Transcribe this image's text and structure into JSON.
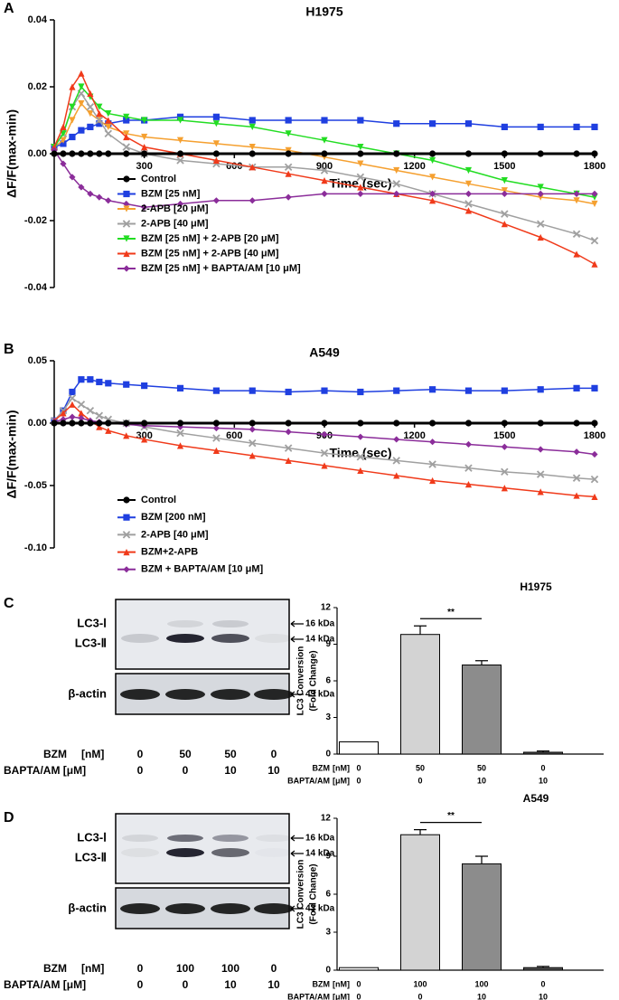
{
  "chart_data": [
    {
      "type": "line",
      "panel": "A",
      "title": "H1975",
      "xlabel": "Time (sec)",
      "ylabel": "ΔF/F(max-min)",
      "xlim": [
        0,
        1800
      ],
      "xticks": [
        300,
        600,
        900,
        1200,
        1500,
        1800
      ],
      "ylim": [
        -0.04,
        0.04
      ],
      "yticks": [
        -0.04,
        -0.02,
        {
          "value": 0,
          "label": "0.00"
        },
        0.02,
        0.04
      ],
      "legend": "lower left",
      "x": [
        0,
        30,
        60,
        90,
        120,
        150,
        180,
        240,
        300,
        420,
        540,
        660,
        780,
        900,
        1020,
        1140,
        1260,
        1380,
        1500,
        1620,
        1740,
        1800
      ],
      "series": [
        {
          "name": "Control",
          "color": "#000000",
          "marker": "circle",
          "values": [
            0,
            0,
            0,
            0,
            0,
            0,
            0,
            0,
            0,
            0,
            0,
            0,
            0,
            0,
            0,
            0,
            0,
            0,
            0,
            0,
            0,
            0
          ]
        },
        {
          "name": "BZM [25 nM]",
          "color": "#1f3fe0",
          "marker": "square",
          "values": [
            0.002,
            0.003,
            0.005,
            0.007,
            0.008,
            0.009,
            0.009,
            0.01,
            0.01,
            0.011,
            0.011,
            0.01,
            0.01,
            0.01,
            0.01,
            0.009,
            0.009,
            0.009,
            0.008,
            0.008,
            0.008,
            0.008
          ]
        },
        {
          "name": "2-APB [20 μM]",
          "color": "#f5a030",
          "marker": "triangle-down",
          "values": [
            0.002,
            0.004,
            0.01,
            0.015,
            0.012,
            0.01,
            0.008,
            0.006,
            0.005,
            0.004,
            0.003,
            0.002,
            0.001,
            -0.001,
            -0.003,
            -0.005,
            -0.007,
            -0.009,
            -0.011,
            -0.013,
            -0.014,
            -0.015
          ]
        },
        {
          "name": "2-APB [40 μM]",
          "color": "#a0a0a0",
          "marker": "x",
          "values": [
            0.002,
            0.006,
            0.014,
            0.018,
            0.014,
            0.01,
            0.006,
            0.002,
            0,
            -0.002,
            -0.003,
            -0.004,
            -0.004,
            -0.005,
            -0.007,
            -0.009,
            -0.012,
            -0.015,
            -0.018,
            -0.021,
            -0.024,
            -0.026
          ]
        },
        {
          "name": "BZM [25 nM] + 2-APB [20 μM]",
          "color": "#22dd22",
          "marker": "triangle-down",
          "values": [
            0.002,
            0.006,
            0.014,
            0.02,
            0.017,
            0.014,
            0.012,
            0.011,
            0.01,
            0.01,
            0.009,
            0.008,
            0.006,
            0.004,
            0.002,
            0,
            -0.002,
            -0.005,
            -0.008,
            -0.01,
            -0.012,
            -0.013
          ]
        },
        {
          "name": "BZM [25 nM] + 2-APB [40 μM]",
          "color": "#f03a1a",
          "marker": "triangle-up",
          "values": [
            0.002,
            0.008,
            0.02,
            0.024,
            0.018,
            0.012,
            0.01,
            0.005,
            0.002,
            0,
            -0.002,
            -0.004,
            -0.006,
            -0.008,
            -0.01,
            -0.012,
            -0.014,
            -0.017,
            -0.021,
            -0.025,
            -0.03,
            -0.033
          ]
        },
        {
          "name": "BZM [25 nM] + BAPTA/AM [10 μM]",
          "color": "#8b2d9a",
          "marker": "diamond",
          "values": [
            0.001,
            -0.003,
            -0.007,
            -0.01,
            -0.012,
            -0.013,
            -0.014,
            -0.015,
            -0.016,
            -0.015,
            -0.014,
            -0.014,
            -0.013,
            -0.012,
            -0.012,
            -0.012,
            -0.012,
            -0.012,
            -0.012,
            -0.012,
            -0.012,
            -0.012
          ]
        }
      ]
    },
    {
      "type": "line",
      "panel": "B",
      "title": "A549",
      "xlabel": "Time (sec)",
      "ylabel": "ΔF/F(max-min)",
      "xlim": [
        0,
        1800
      ],
      "xticks": [
        300,
        600,
        900,
        1200,
        1500,
        1800
      ],
      "ylim": [
        -0.1,
        0.05
      ],
      "yticks": [
        {
          "value": -0.1,
          "label": "-0.10"
        },
        -0.05,
        {
          "value": 0,
          "label": "0.00"
        },
        0.05
      ],
      "legend": "lower left",
      "x": [
        0,
        30,
        60,
        90,
        120,
        150,
        180,
        240,
        300,
        420,
        540,
        660,
        780,
        900,
        1020,
        1140,
        1260,
        1380,
        1500,
        1620,
        1740,
        1800
      ],
      "series": [
        {
          "name": "Control",
          "color": "#000000",
          "marker": "circle",
          "values": [
            0,
            0,
            0,
            0,
            0,
            0,
            0,
            0,
            0,
            0,
            0,
            0,
            0,
            0,
            0,
            0,
            0,
            0,
            0,
            0,
            0,
            0
          ]
        },
        {
          "name": "BZM [200 nM]",
          "color": "#1f3fe0",
          "marker": "square",
          "values": [
            0.002,
            0.01,
            0.025,
            0.035,
            0.035,
            0.033,
            0.032,
            0.031,
            0.03,
            0.028,
            0.026,
            0.026,
            0.025,
            0.026,
            0.025,
            0.026,
            0.027,
            0.026,
            0.026,
            0.027,
            0.028,
            0.028
          ]
        },
        {
          "name": "2-APB [40 μM]",
          "color": "#a0a0a0",
          "marker": "x",
          "values": [
            0.002,
            0.01,
            0.02,
            0.015,
            0.01,
            0.006,
            0.003,
            0,
            -0.003,
            -0.008,
            -0.012,
            -0.016,
            -0.02,
            -0.024,
            -0.027,
            -0.03,
            -0.033,
            -0.036,
            -0.039,
            -0.041,
            -0.044,
            -0.045
          ]
        },
        {
          "name": "BZM+2-APB",
          "color": "#f03a1a",
          "marker": "triangle-up",
          "values": [
            0.002,
            0.008,
            0.015,
            0.008,
            0.002,
            -0.003,
            -0.006,
            -0.01,
            -0.013,
            -0.018,
            -0.022,
            -0.026,
            -0.03,
            -0.034,
            -0.038,
            -0.042,
            -0.046,
            -0.049,
            -0.052,
            -0.055,
            -0.058,
            -0.059
          ]
        },
        {
          "name": "BZM + BAPTA/AM [10 μM]",
          "color": "#8b2d9a",
          "marker": "diamond",
          "values": [
            0.001,
            0.003,
            0.005,
            0.004,
            0.002,
            0.001,
            0,
            -0.001,
            -0.002,
            -0.003,
            -0.004,
            -0.005,
            -0.007,
            -0.009,
            -0.011,
            -0.013,
            -0.015,
            -0.017,
            -0.019,
            -0.021,
            -0.023,
            -0.025
          ]
        }
      ]
    },
    {
      "type": "bar",
      "title": "H1975",
      "ylabel": [
        "LC3 Conversion",
        "(Fold Change)"
      ],
      "ylim": [
        0,
        12
      ],
      "yticks": [
        0,
        3,
        6,
        9,
        12
      ],
      "annotation": "**",
      "category_levels": [
        {
          "name": "BZM",
          "unit": "[nM]",
          "labels": [
            "0",
            "50",
            "50",
            "0"
          ]
        },
        {
          "name": "BAPTA/AM",
          "unit": "[μM]",
          "labels": [
            "0",
            "0",
            "10",
            "10"
          ]
        }
      ],
      "values": [
        1,
        9.8,
        7.3,
        0.15
      ],
      "errors": [
        0,
        0.7,
        0.35,
        0.1
      ],
      "colors": [
        "#ffffff",
        "#d3d3d3",
        "#8c8c8c",
        "#555555"
      ]
    },
    {
      "type": "bar",
      "title": "A549",
      "ylabel": [
        "LC3 Conversion",
        "(Fold Change)"
      ],
      "ylim": [
        0,
        12
      ],
      "yticks": [
        0,
        3,
        6,
        9,
        12
      ],
      "annotation": "**",
      "category_levels": [
        {
          "name": "BZM",
          "unit": "[nM]",
          "labels": [
            "0",
            "100",
            "100",
            "0"
          ]
        },
        {
          "name": "BAPTA/AM",
          "unit": "[μM]",
          "labels": [
            "0",
            "0",
            "10",
            "10"
          ]
        }
      ],
      "values": [
        0.2,
        10.7,
        8.4,
        0.2
      ],
      "errors": [
        0,
        0.4,
        0.6,
        0.1
      ],
      "colors": [
        "#ffffff",
        "#d3d3d3",
        "#8c8c8c",
        "#555555"
      ]
    }
  ],
  "blots": [
    {
      "panel": "C",
      "bands": [
        "LC3-Ⅰ",
        "LC3-Ⅱ",
        "β-actin"
      ],
      "markers": [
        "16 kDa",
        "14 kDa",
        "43 kDa"
      ],
      "conditions": [
        {
          "name": "BZM",
          "unit": "[nM]",
          "values": [
            "0",
            "50",
            "50",
            "0"
          ]
        },
        {
          "name": "BAPTA/AM [μM]",
          "unit": "",
          "values": [
            "0",
            "0",
            "10",
            "10"
          ]
        }
      ]
    },
    {
      "panel": "D",
      "bands": [
        "LC3-Ⅰ",
        "LC3-Ⅱ",
        "β-actin"
      ],
      "markers": [
        "16 kDa",
        "14 kDa",
        "43 kDa"
      ],
      "conditions": [
        {
          "name": "BZM",
          "unit": "[nM]",
          "values": [
            "0",
            "100",
            "100",
            "0"
          ]
        },
        {
          "name": "BAPTA/AM [μM]",
          "unit": "",
          "values": [
            "0",
            "0",
            "10",
            "10"
          ]
        }
      ]
    }
  ]
}
